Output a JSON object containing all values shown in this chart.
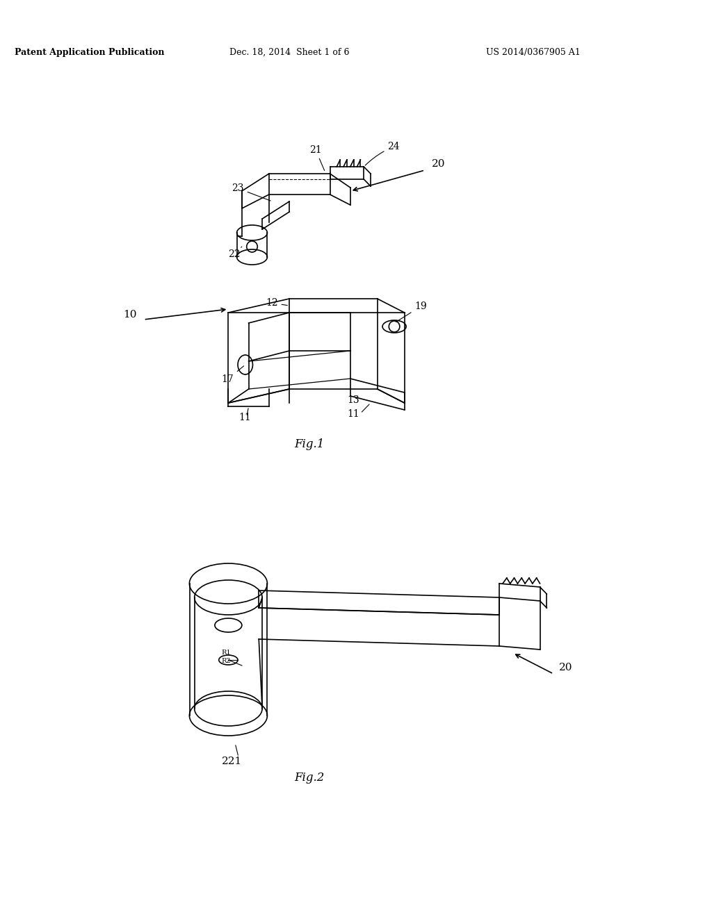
{
  "background_color": "#ffffff",
  "header_left": "Patent Application Publication",
  "header_center": "Dec. 18, 2014  Sheet 1 of 6",
  "header_right": "US 2014/0367905 A1",
  "fig1_label": "Fig.1",
  "fig2_label": "Fig.2",
  "title_fontsize": 11,
  "label_fontsize": 12,
  "fig_width": 10.24,
  "fig_height": 13.2
}
